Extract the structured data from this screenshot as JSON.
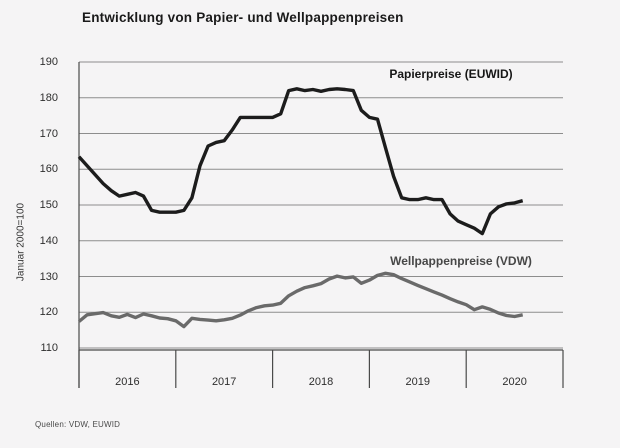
{
  "title": "Entwicklung von Papier- und Wellpappenpreisen",
  "source": "Quellen: VDW, EUWID",
  "colors": {
    "background": "#f5f4f5",
    "gridline": "#8d8d8d",
    "axis": "#4a4a4a",
    "papier_line": "#1c1c1c",
    "wellpappe_line": "#6a6a6a"
  },
  "chart_data": {
    "type": "line",
    "title": "Entwicklung von Papier- und Wellpappenpreisen",
    "xlabel": "",
    "ylabel": "Januar 2000=100",
    "ylim": [
      110,
      190
    ],
    "yticks": [
      190,
      180,
      170,
      160,
      150,
      140,
      130,
      120,
      110
    ],
    "grid": "horizontal",
    "x_axis": {
      "tick_labels": [
        "2016",
        "2017",
        "2018",
        "2019",
        "2020"
      ],
      "unit": "month",
      "first_point": "2016-01"
    },
    "legend_position": "labels-above-lines",
    "series": [
      {
        "name": "Papierpreise (EUWID)",
        "color": "#1c1c1c",
        "values": [
          163.5,
          161,
          158.5,
          156,
          154,
          152.5,
          153,
          153.5,
          152.5,
          148.5,
          148,
          148,
          148,
          148.5,
          152,
          161,
          166.5,
          167.5,
          168,
          171,
          174.5,
          174.5,
          174.5,
          174.5,
          174.5,
          175.5,
          182,
          182.5,
          182,
          182.3,
          181.8,
          182.3,
          182.5,
          182.3,
          182,
          176.5,
          174.5,
          174,
          166,
          158,
          152,
          151.5,
          151.5,
          152,
          151.5,
          151.5,
          147.5,
          145.5,
          144.5,
          143.5,
          142,
          147.5,
          149.5,
          150.3,
          150.6,
          151.2
        ]
      },
      {
        "name": "Wellpappenpreise (VDW)",
        "color": "#6a6a6a",
        "values": [
          117.4,
          119.3,
          119.6,
          119.9,
          119,
          118.6,
          119.4,
          118.5,
          119.5,
          119,
          118.4,
          118.2,
          117.6,
          116,
          118.3,
          118,
          117.8,
          117.6,
          117.9,
          118.3,
          119.2,
          120.4,
          121.3,
          121.8,
          122,
          122.5,
          124.6,
          125.9,
          126.9,
          127.4,
          128,
          129.3,
          130.1,
          129.6,
          129.9,
          128.1,
          129,
          130.3,
          130.9,
          130.5,
          129.4,
          128.5,
          127.5,
          126.6,
          125.7,
          124.8,
          123.8,
          122.9,
          122.1,
          120.7,
          121.5,
          120.8,
          119.8,
          119.1,
          118.8,
          119.3
        ]
      }
    ]
  }
}
